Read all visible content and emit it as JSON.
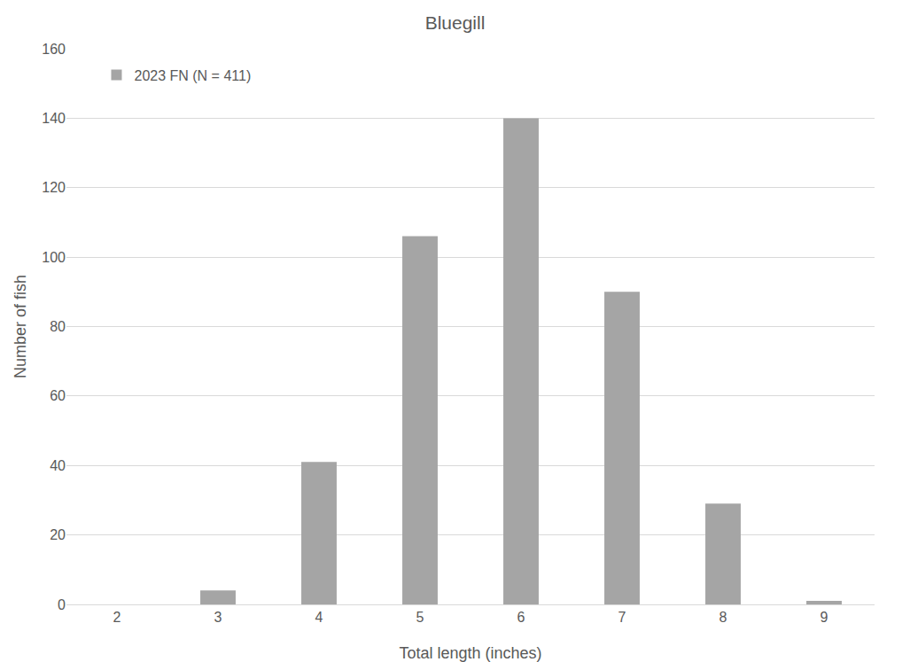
{
  "chart_data": {
    "type": "bar",
    "title": "Bluegill",
    "x_label": "Total length (inches)",
    "y_label": "Number of fish",
    "categories": [
      "2",
      "3",
      "4",
      "5",
      "6",
      "7",
      "8",
      "9"
    ],
    "series": [
      {
        "name": "2023 FN (N = 411)",
        "color": "#a5a5a5",
        "values": [
          0,
          4,
          41,
          106,
          140,
          90,
          29,
          1
        ]
      }
    ],
    "ylim": [
      0,
      160
    ],
    "yticks": [
      0,
      20,
      40,
      60,
      80,
      100,
      120,
      140,
      160
    ],
    "grid": true,
    "legend": "upper left"
  }
}
